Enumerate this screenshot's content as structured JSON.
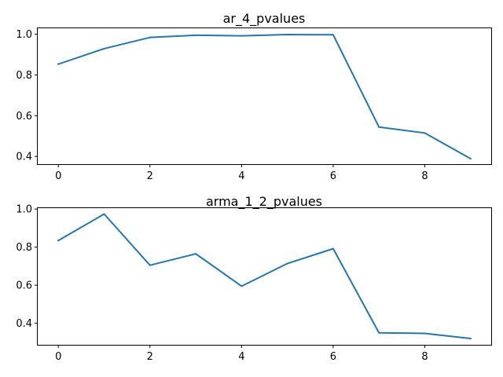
{
  "colors": {
    "series": "#1f77b4",
    "background": "#ffffff"
  },
  "chart_data": [
    {
      "type": "line",
      "title": "ar_4_pvalues",
      "xlabel": "",
      "ylabel": "",
      "xlim": [
        -0.45,
        9.45
      ],
      "ylim": [
        0.362,
        1.029
      ],
      "xticks": [
        0,
        2,
        4,
        6,
        8
      ],
      "yticks": [
        0.4,
        0.6,
        0.8,
        1.0
      ],
      "grid": false,
      "series": [
        {
          "x": [
            0,
            1,
            2,
            3,
            4,
            5,
            6,
            7,
            8,
            9
          ],
          "values": [
            0.853,
            0.929,
            0.984,
            0.995,
            0.992,
            0.998,
            0.997,
            0.544,
            0.515,
            0.389
          ]
        }
      ]
    },
    {
      "type": "line",
      "title": "arma_1_2_pvalues",
      "xlabel": "",
      "ylabel": "",
      "xlim": [
        -0.45,
        9.45
      ],
      "ylim": [
        0.287,
        1.005
      ],
      "xticks": [
        0,
        2,
        4,
        6,
        8
      ],
      "yticks": [
        0.4,
        0.6,
        0.8,
        1.0
      ],
      "grid": false,
      "series": [
        {
          "x": [
            0,
            1,
            2,
            3,
            4,
            5,
            6,
            7,
            8,
            9
          ],
          "values": [
            0.835,
            0.974,
            0.705,
            0.765,
            0.595,
            0.714,
            0.792,
            0.35,
            0.347,
            0.32
          ]
        }
      ]
    }
  ]
}
